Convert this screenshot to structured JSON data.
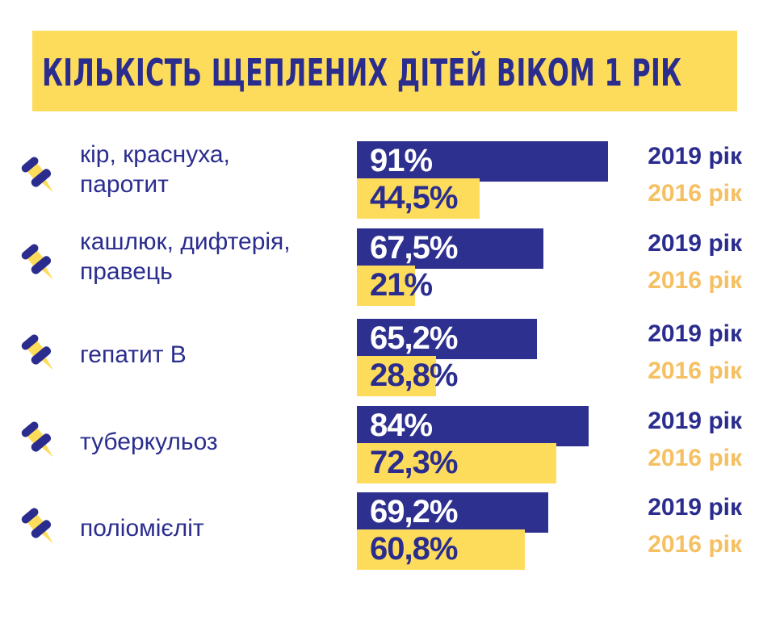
{
  "chart_data": {
    "type": "bar",
    "orientation": "horizontal",
    "title": "КІЛЬКІСТЬ ЩЕПЛЕНИХ ДІТЕЙ ВІКОМ 1 РІК",
    "categories": [
      "кір, краснуха, паротит",
      "кашлюк, дифтерія, правець",
      "гепатит В",
      "туберкульоз",
      "поліомієліт"
    ],
    "category_lines": [
      [
        "кір, краснуха,",
        "паротит"
      ],
      [
        "кашлюк, дифтерія,",
        "правець"
      ],
      [
        "гепатит В"
      ],
      [
        "туберкульоз"
      ],
      [
        "поліомієліт"
      ]
    ],
    "series": [
      {
        "name": "2019 рік",
        "color": "#2e308f",
        "values": [
          91,
          67.5,
          65.2,
          84,
          69.2
        ],
        "labels": [
          "91%",
          "67,5%",
          "65,2%",
          "84%",
          "69,2%"
        ]
      },
      {
        "name": "2016 рік",
        "color": "#fddc5c",
        "values": [
          44.5,
          21,
          28.8,
          72.3,
          60.8
        ],
        "labels": [
          "44,5%",
          "21%",
          "28,8%",
          "72,3%",
          "60,8%"
        ]
      }
    ],
    "xlim": [
      0,
      100
    ],
    "legend": "per-row, right"
  },
  "colors": {
    "navy": "#2b2d8e",
    "yellow": "#fddc5c",
    "orange": "#f5c062"
  },
  "icon": "pushpin-icon"
}
